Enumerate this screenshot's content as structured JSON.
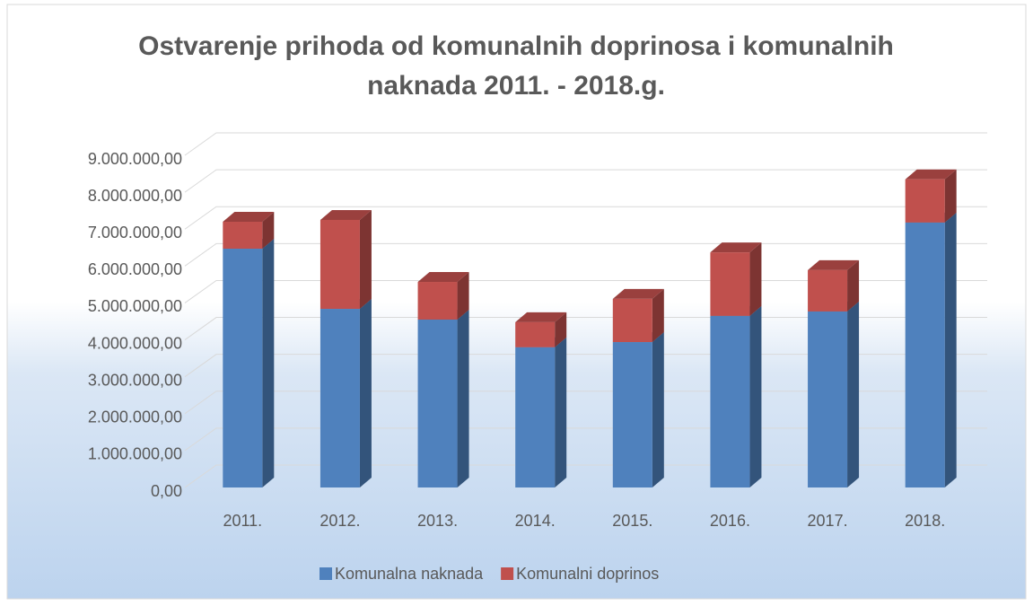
{
  "chart_data": {
    "type": "bar",
    "stacked": true,
    "title": "Ostvarenje prihoda od komunalnih doprinosa i komunalnih naknada 2011. - 2018.g.",
    "categories": [
      "2011.",
      "2012.",
      "2013.",
      "2014.",
      "2015.",
      "2016.",
      "2017.",
      "2018."
    ],
    "series": [
      {
        "name": "Komunalna naknada",
        "color": "#4f81bd",
        "values": [
          6470000,
          4840000,
          4550000,
          3800000,
          3940000,
          4650000,
          4770000,
          7180000
        ]
      },
      {
        "name": "Komunalni doprinos",
        "color": "#c0504d",
        "values": [
          730000,
          2410000,
          1020000,
          680000,
          1170000,
          1720000,
          1120000,
          1170000
        ]
      }
    ],
    "ylim": [
      0,
      9000000
    ],
    "yticks": [
      {
        "value": 0,
        "label": "0,00"
      },
      {
        "value": 1000000,
        "label": "1.000.000,00"
      },
      {
        "value": 2000000,
        "label": "2.000.000,00"
      },
      {
        "value": 3000000,
        "label": "3.000.000,00"
      },
      {
        "value": 4000000,
        "label": "4.000.000,00"
      },
      {
        "value": 5000000,
        "label": "5.000.000,00"
      },
      {
        "value": 6000000,
        "label": "6.000.000,00"
      },
      {
        "value": 7000000,
        "label": "7.000.000,00"
      },
      {
        "value": 8000000,
        "label": "8.000.000,00"
      },
      {
        "value": 9000000,
        "label": "9.000.000,00"
      }
    ],
    "grid": true,
    "legend": "bottom"
  }
}
